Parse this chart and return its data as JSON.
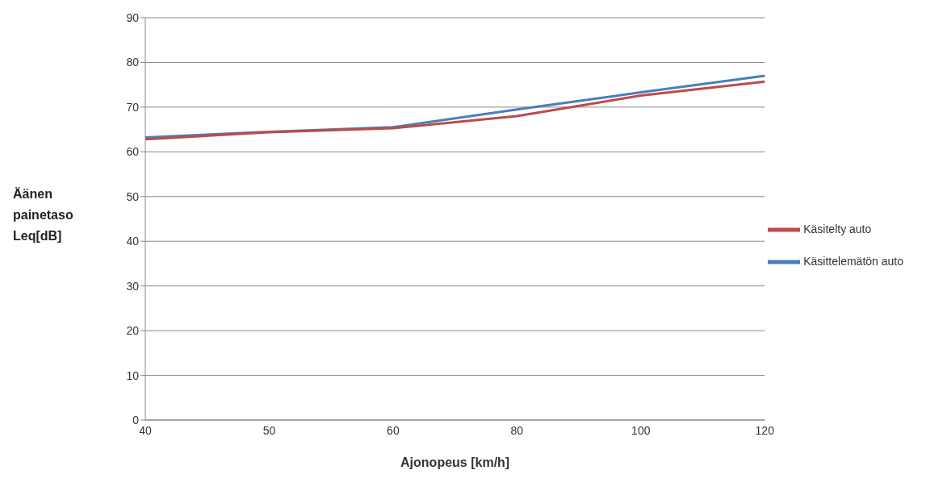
{
  "chart_data": {
    "type": "line",
    "xlabel": "Ajonopeus [km/h]",
    "ylabel": "Äänen painetaso Leq[dB]",
    "categories": [
      "40",
      "50",
      "60",
      "80",
      "100",
      "120"
    ],
    "series": [
      {
        "name": "Käsittelemätön auto",
        "color": "#4a7ebb",
        "values": [
          63.2,
          64.5,
          65.5,
          69.5,
          73.3,
          77
        ]
      },
      {
        "name": "Käsitelty auto",
        "color": "#be4b48",
        "values": [
          62.8,
          64.4,
          65.3,
          68,
          72.6,
          75.7
        ]
      }
    ],
    "ylim": [
      0,
      90
    ],
    "yticks": [
      0,
      10,
      20,
      30,
      40,
      50,
      60,
      70,
      80,
      90
    ],
    "grid": "y",
    "legend": "right",
    "marker": "none",
    "line_style": "solid"
  }
}
